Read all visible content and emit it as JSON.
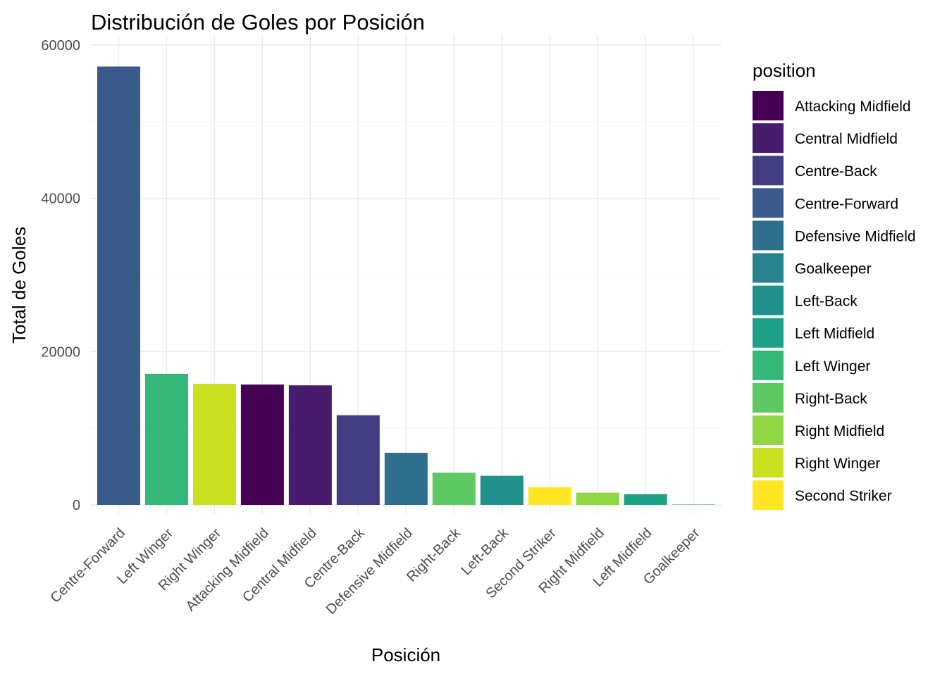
{
  "chart_data": {
    "type": "bar",
    "title": "Distribución de Goles por Posición",
    "xlabel": "Posición",
    "ylabel": "Total de Goles",
    "ylim": [
      0,
      60000
    ],
    "yticks": [
      0,
      20000,
      40000,
      60000
    ],
    "y_tick_labels": [
      "0",
      "20000",
      "40000",
      "60000"
    ],
    "grid": true,
    "legend_position": "right",
    "legend_title": "position",
    "categories": [
      "Centre-Forward",
      "Left Winger",
      "Right Winger",
      "Attacking Midfield",
      "Central Midfield",
      "Centre-Back",
      "Defensive Midfield",
      "Right-Back",
      "Left-Back",
      "Second Striker",
      "Right Midfield",
      "Left Midfield",
      "Goalkeeper"
    ],
    "values": [
      57200,
      17100,
      15800,
      15700,
      15600,
      11700,
      6800,
      4200,
      3800,
      2300,
      1600,
      1400,
      40
    ],
    "legend": [
      {
        "name": "Attacking Midfield",
        "color": "#440154"
      },
      {
        "name": "Central Midfield",
        "color": "#481B6D"
      },
      {
        "name": "Centre-Back",
        "color": "#433D84"
      },
      {
        "name": "Centre-Forward",
        "color": "#3B5A8C"
      },
      {
        "name": "Defensive Midfield",
        "color": "#2F6F8E"
      },
      {
        "name": "Goalkeeper",
        "color": "#28838E"
      },
      {
        "name": "Left-Back",
        "color": "#21918C"
      },
      {
        "name": "Left Midfield",
        "color": "#1FA187"
      },
      {
        "name": "Left Winger",
        "color": "#35B779"
      },
      {
        "name": "Right-Back",
        "color": "#5EC962"
      },
      {
        "name": "Right Midfield",
        "color": "#90D743"
      },
      {
        "name": "Right Winger",
        "color": "#C8E020"
      },
      {
        "name": "Second Striker",
        "color": "#FDE725"
      }
    ]
  }
}
